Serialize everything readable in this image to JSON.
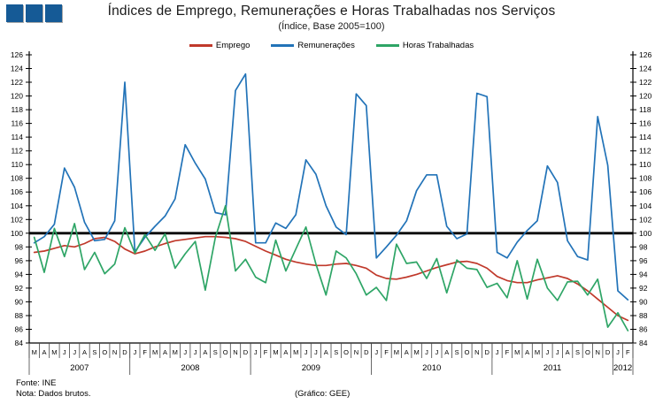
{
  "header": {
    "title": "Índices de Emprego,  Remunerações  e Horas Trabalhadas  nos Serviços",
    "subtitle": "(Índice, Base 2005=100)"
  },
  "logo": {
    "square_color": "#155A96",
    "square_count": 3
  },
  "footer": {
    "fonte": "Fonte:  INE",
    "nota": "Nota:  Dados  brutos.",
    "grafico": "(Gráfico:  GEE)"
  },
  "chart_data": {
    "type": "line",
    "title": "Índices de Emprego, Remunerações e Horas Trabalhadas nos Serviços",
    "subtitle": "(Índice, Base 2005=100)",
    "ylabel": "",
    "xlabel": "",
    "ylim": [
      84,
      126
    ],
    "ytick_step": 2,
    "baseline": 100,
    "grid": false,
    "legend_position": "top",
    "years": [
      {
        "label": "2007",
        "months": [
          "M",
          "A",
          "M",
          "J",
          "J",
          "A",
          "S",
          "O",
          "N",
          "D"
        ]
      },
      {
        "label": "2008",
        "months": [
          "J",
          "F",
          "M",
          "A",
          "M",
          "J",
          "J",
          "A",
          "S",
          "O",
          "N",
          "D"
        ]
      },
      {
        "label": "2009",
        "months": [
          "J",
          "F",
          "M",
          "A",
          "M",
          "J",
          "J",
          "A",
          "S",
          "O",
          "N",
          "D"
        ]
      },
      {
        "label": "2010",
        "months": [
          "J",
          "F",
          "M",
          "A",
          "M",
          "J",
          "J",
          "A",
          "S",
          "O",
          "N",
          "D"
        ]
      },
      {
        "label": "2011",
        "months": [
          "J",
          "F",
          "M",
          "A",
          "M",
          "J",
          "J",
          "A",
          "S",
          "O",
          "N",
          "D"
        ]
      },
      {
        "label": "2012",
        "months": [
          "J",
          "F"
        ]
      }
    ],
    "series": [
      {
        "name": "Emprego",
        "color": "#C0392B",
        "values": [
          97.2,
          97.4,
          97.8,
          98.2,
          98.0,
          98.5,
          99.2,
          99.4,
          98.8,
          97.7,
          97.0,
          97.4,
          98.0,
          98.5,
          98.9,
          99.1,
          99.3,
          99.5,
          99.5,
          99.4,
          99.2,
          98.8,
          98.1,
          97.4,
          96.8,
          96.2,
          95.8,
          95.5,
          95.3,
          95.3,
          95.5,
          95.6,
          95.3,
          94.9,
          93.9,
          93.4,
          93.3,
          93.6,
          94.0,
          94.5,
          95.0,
          95.4,
          95.8,
          95.9,
          95.6,
          94.9,
          93.7,
          93.1,
          92.8,
          92.8,
          93.2,
          93.5,
          93.8,
          93.4,
          92.6,
          91.6,
          90.4,
          89.2,
          88.0,
          87.3
        ]
      },
      {
        "name": "Remunerações",
        "color": "#2273B8",
        "values": [
          98.6,
          99.5,
          101.3,
          109.5,
          106.7,
          101.6,
          98.9,
          99.1,
          101.8,
          122.0,
          97.3,
          99.4,
          101.0,
          102.5,
          105.0,
          112.9,
          110.2,
          107.9,
          103.0,
          102.7,
          120.8,
          123.2,
          98.6,
          98.6,
          101.5,
          100.7,
          102.7,
          110.7,
          108.6,
          104.0,
          100.9,
          99.8,
          120.3,
          118.6,
          96.4,
          98.0,
          99.7,
          101.8,
          106.2,
          108.5,
          108.5,
          101.0,
          99.2,
          99.9,
          120.4,
          119.9,
          97.2,
          96.4,
          98.7,
          100.4,
          101.8,
          109.8,
          107.4,
          98.9,
          96.6,
          96.1,
          117.0,
          109.9,
          91.6,
          90.3
        ]
      },
      {
        "name": "Horas Trabalhadas",
        "color": "#2EA566",
        "values": [
          99.4,
          94.3,
          100.7,
          96.6,
          101.4,
          94.7,
          97.2,
          94.1,
          95.5,
          100.8,
          97.1,
          99.8,
          97.5,
          99.9,
          94.9,
          97.0,
          98.8,
          91.7,
          99.4,
          104.0,
          94.5,
          96.2,
          93.6,
          92.8,
          99.0,
          94.5,
          97.7,
          100.9,
          95.5,
          91.0,
          97.4,
          96.4,
          94.1,
          91.0,
          92.1,
          90.2,
          98.4,
          95.6,
          95.8,
          93.4,
          96.3,
          91.3,
          96.1,
          94.9,
          94.7,
          92.1,
          92.7,
          90.6,
          96.0,
          90.4,
          96.2,
          92.0,
          90.2,
          92.9,
          93.0,
          91.0,
          93.3,
          86.3,
          88.4,
          85.8
        ]
      }
    ]
  }
}
